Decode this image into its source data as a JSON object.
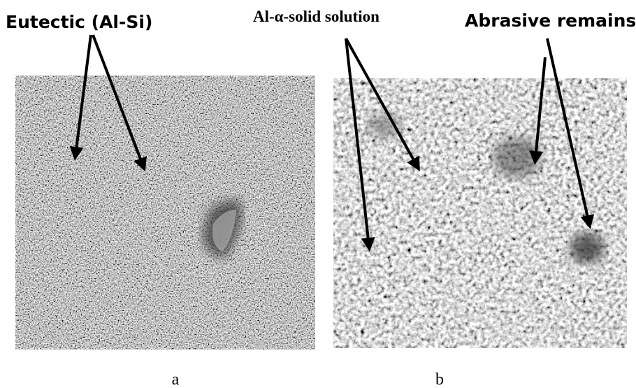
{
  "labels": {
    "eutectic": "Eutectic (Al-Si)",
    "solid_solution": "Al-α-solid solution",
    "abrasive": "Abrasive remains"
  },
  "panels": {
    "a": "a",
    "b": "b"
  }
}
